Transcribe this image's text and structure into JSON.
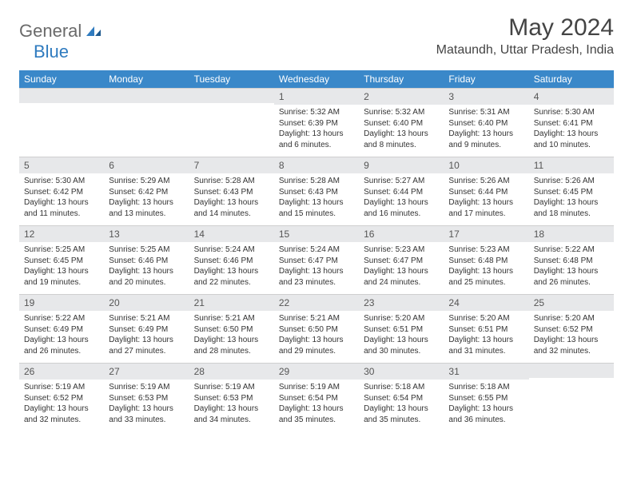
{
  "logo": {
    "general": "General",
    "blue": "Blue"
  },
  "monthTitle": "May 2024",
  "location": "Mataundh, Uttar Pradesh, India",
  "colors": {
    "headerBg": "#3a88c9",
    "headerText": "#ffffff",
    "dayNumBg": "#e7e8ea",
    "bodyText": "#333333",
    "pageBg": "#ffffff",
    "rule": "#cfcfcf"
  },
  "dayNames": [
    "Sunday",
    "Monday",
    "Tuesday",
    "Wednesday",
    "Thursday",
    "Friday",
    "Saturday"
  ],
  "weeks": [
    [
      null,
      null,
      null,
      {
        "n": "1",
        "sr": "5:32 AM",
        "ss": "6:39 PM",
        "dl": "13 hours and 6 minutes."
      },
      {
        "n": "2",
        "sr": "5:32 AM",
        "ss": "6:40 PM",
        "dl": "13 hours and 8 minutes."
      },
      {
        "n": "3",
        "sr": "5:31 AM",
        "ss": "6:40 PM",
        "dl": "13 hours and 9 minutes."
      },
      {
        "n": "4",
        "sr": "5:30 AM",
        "ss": "6:41 PM",
        "dl": "13 hours and 10 minutes."
      }
    ],
    [
      {
        "n": "5",
        "sr": "5:30 AM",
        "ss": "6:42 PM",
        "dl": "13 hours and 11 minutes."
      },
      {
        "n": "6",
        "sr": "5:29 AM",
        "ss": "6:42 PM",
        "dl": "13 hours and 13 minutes."
      },
      {
        "n": "7",
        "sr": "5:28 AM",
        "ss": "6:43 PM",
        "dl": "13 hours and 14 minutes."
      },
      {
        "n": "8",
        "sr": "5:28 AM",
        "ss": "6:43 PM",
        "dl": "13 hours and 15 minutes."
      },
      {
        "n": "9",
        "sr": "5:27 AM",
        "ss": "6:44 PM",
        "dl": "13 hours and 16 minutes."
      },
      {
        "n": "10",
        "sr": "5:26 AM",
        "ss": "6:44 PM",
        "dl": "13 hours and 17 minutes."
      },
      {
        "n": "11",
        "sr": "5:26 AM",
        "ss": "6:45 PM",
        "dl": "13 hours and 18 minutes."
      }
    ],
    [
      {
        "n": "12",
        "sr": "5:25 AM",
        "ss": "6:45 PM",
        "dl": "13 hours and 19 minutes."
      },
      {
        "n": "13",
        "sr": "5:25 AM",
        "ss": "6:46 PM",
        "dl": "13 hours and 20 minutes."
      },
      {
        "n": "14",
        "sr": "5:24 AM",
        "ss": "6:46 PM",
        "dl": "13 hours and 22 minutes."
      },
      {
        "n": "15",
        "sr": "5:24 AM",
        "ss": "6:47 PM",
        "dl": "13 hours and 23 minutes."
      },
      {
        "n": "16",
        "sr": "5:23 AM",
        "ss": "6:47 PM",
        "dl": "13 hours and 24 minutes."
      },
      {
        "n": "17",
        "sr": "5:23 AM",
        "ss": "6:48 PM",
        "dl": "13 hours and 25 minutes."
      },
      {
        "n": "18",
        "sr": "5:22 AM",
        "ss": "6:48 PM",
        "dl": "13 hours and 26 minutes."
      }
    ],
    [
      {
        "n": "19",
        "sr": "5:22 AM",
        "ss": "6:49 PM",
        "dl": "13 hours and 26 minutes."
      },
      {
        "n": "20",
        "sr": "5:21 AM",
        "ss": "6:49 PM",
        "dl": "13 hours and 27 minutes."
      },
      {
        "n": "21",
        "sr": "5:21 AM",
        "ss": "6:50 PM",
        "dl": "13 hours and 28 minutes."
      },
      {
        "n": "22",
        "sr": "5:21 AM",
        "ss": "6:50 PM",
        "dl": "13 hours and 29 minutes."
      },
      {
        "n": "23",
        "sr": "5:20 AM",
        "ss": "6:51 PM",
        "dl": "13 hours and 30 minutes."
      },
      {
        "n": "24",
        "sr": "5:20 AM",
        "ss": "6:51 PM",
        "dl": "13 hours and 31 minutes."
      },
      {
        "n": "25",
        "sr": "5:20 AM",
        "ss": "6:52 PM",
        "dl": "13 hours and 32 minutes."
      }
    ],
    [
      {
        "n": "26",
        "sr": "5:19 AM",
        "ss": "6:52 PM",
        "dl": "13 hours and 32 minutes."
      },
      {
        "n": "27",
        "sr": "5:19 AM",
        "ss": "6:53 PM",
        "dl": "13 hours and 33 minutes."
      },
      {
        "n": "28",
        "sr": "5:19 AM",
        "ss": "6:53 PM",
        "dl": "13 hours and 34 minutes."
      },
      {
        "n": "29",
        "sr": "5:19 AM",
        "ss": "6:54 PM",
        "dl": "13 hours and 35 minutes."
      },
      {
        "n": "30",
        "sr": "5:18 AM",
        "ss": "6:54 PM",
        "dl": "13 hours and 35 minutes."
      },
      {
        "n": "31",
        "sr": "5:18 AM",
        "ss": "6:55 PM",
        "dl": "13 hours and 36 minutes."
      },
      null
    ]
  ],
  "labels": {
    "sunrise": "Sunrise:",
    "sunset": "Sunset:",
    "daylight": "Daylight:"
  }
}
